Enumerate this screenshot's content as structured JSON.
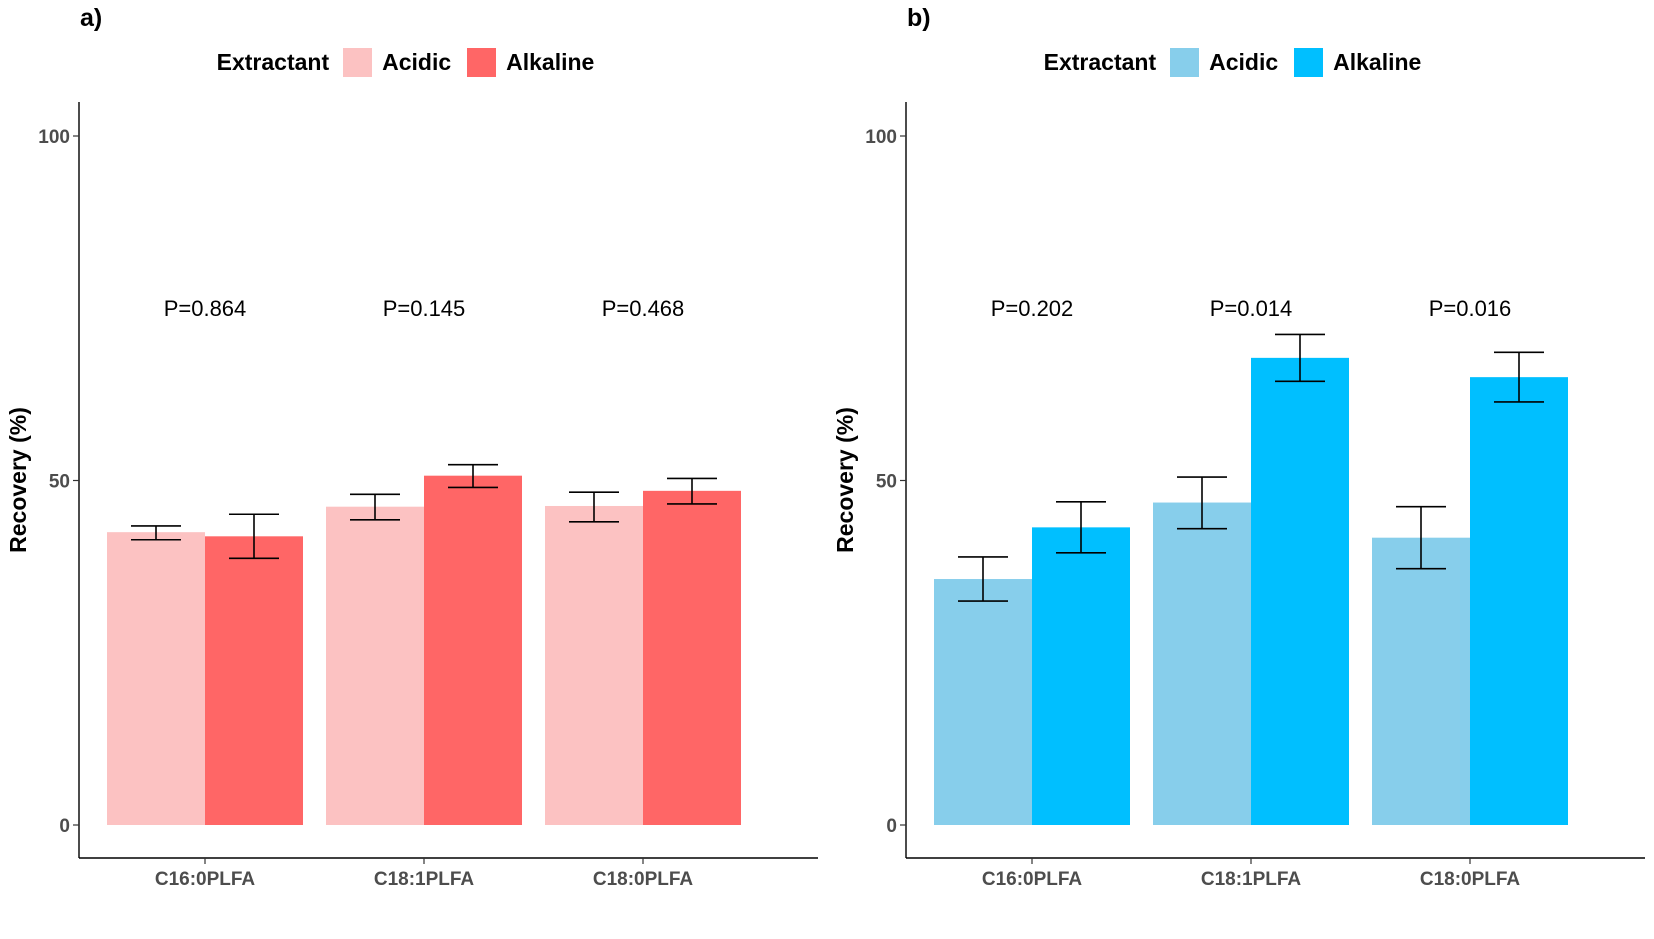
{
  "chart_data": [
    {
      "type": "bar",
      "panel_label": "a)",
      "legend_title": "Extractant",
      "ylabel": "Recovery (%)",
      "xlabel": "",
      "ylim": [
        -5,
        105
      ],
      "yticks": [
        0,
        50,
        100
      ],
      "ytick_labels": [
        "0",
        "50",
        "100"
      ],
      "categories": [
        "C16:0PLFA",
        "C18:1PLFA",
        "C18:0PLFA"
      ],
      "series": [
        {
          "name": "Acidic",
          "color": "#FCC2C2",
          "values": [
            42.5,
            46.2,
            46.3
          ],
          "err_low": [
            41.4,
            44.3,
            44.0
          ],
          "err_high": [
            43.4,
            48.0,
            48.3
          ]
        },
        {
          "name": "Alkaline",
          "color": "#FF6666",
          "values": [
            41.9,
            50.7,
            48.5
          ],
          "err_low": [
            38.7,
            49.0,
            46.6
          ],
          "err_high": [
            45.1,
            52.3,
            50.3
          ]
        }
      ],
      "p_values": [
        "P=0.864",
        "P=0.145",
        "P=0.468"
      ]
    },
    {
      "type": "bar",
      "panel_label": "b)",
      "legend_title": "Extractant",
      "ylabel": "Recovery (%)",
      "xlabel": "",
      "ylim": [
        -5,
        105
      ],
      "yticks": [
        0,
        50,
        100
      ],
      "ytick_labels": [
        "0",
        "50",
        "100"
      ],
      "categories": [
        "C16:0PLFA",
        "C18:1PLFA",
        "C18:0PLFA"
      ],
      "series": [
        {
          "name": "Acidic",
          "color": "#87CEEB",
          "values": [
            35.7,
            46.8,
            41.7
          ],
          "err_low": [
            32.5,
            43.0,
            37.2
          ],
          "err_high": [
            38.9,
            50.5,
            46.2
          ]
        },
        {
          "name": "Alkaline",
          "color": "#00BFFF",
          "values": [
            43.2,
            67.8,
            65.0
          ],
          "err_low": [
            39.5,
            64.4,
            61.4
          ],
          "err_high": [
            46.9,
            71.2,
            68.6
          ]
        }
      ],
      "p_values": [
        "P=0.202",
        "P=0.014",
        "P=0.016"
      ]
    }
  ]
}
